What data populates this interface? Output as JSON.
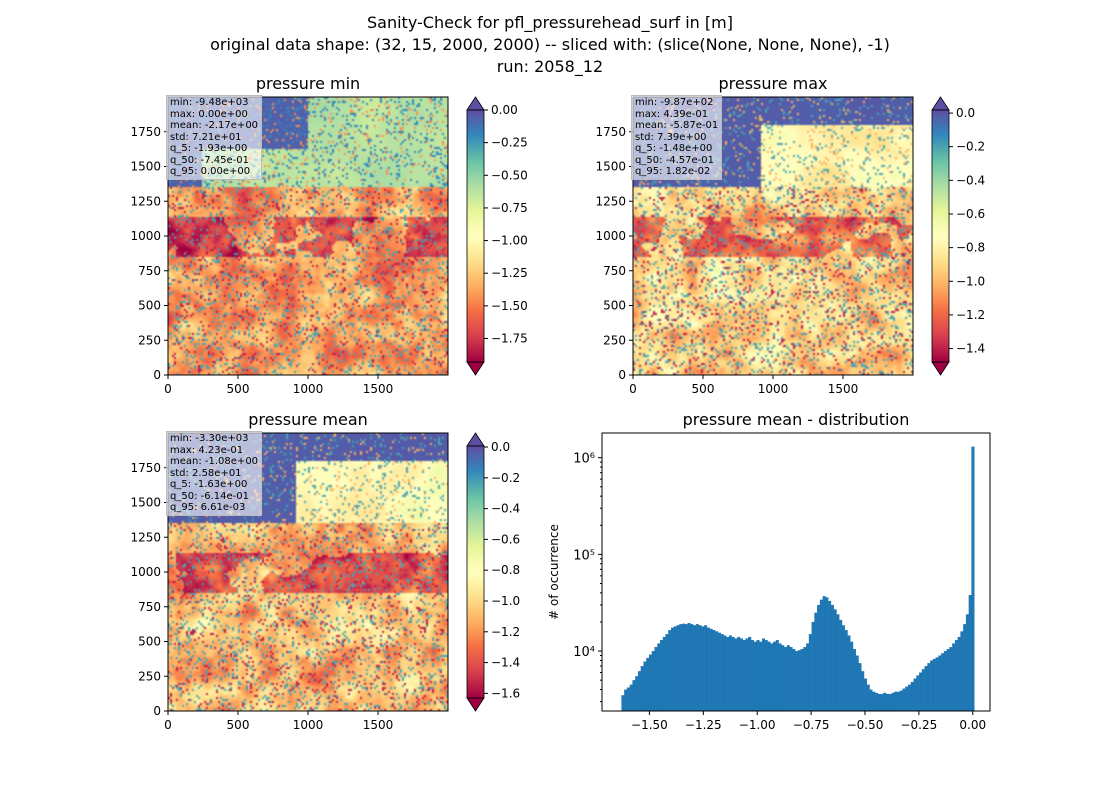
{
  "suptitle": {
    "line1": "Sanity-Check for pfl_pressurehead_surf in [m]",
    "line2": "original data shape: (32, 15, 2000, 2000) -- sliced with: (slice(None, None, None), -1)",
    "line3": "run: 2058_12"
  },
  "colormap": {
    "name": "Spectral",
    "stops": [
      "#9e0142",
      "#d53e4f",
      "#f46d43",
      "#fdae61",
      "#fee08b",
      "#ffffbf",
      "#e6f598",
      "#abdda4",
      "#66c2a5",
      "#3288bd",
      "#5e4fa2"
    ]
  },
  "chart_data": [
    {
      "type": "heatmap",
      "title": "pressure min",
      "xlim": [
        0,
        2000
      ],
      "ylim": [
        0,
        2000
      ],
      "xticks": [
        0,
        500,
        1000,
        1500
      ],
      "yticks": [
        0,
        250,
        500,
        750,
        1000,
        1250,
        1500,
        1750
      ],
      "colorbar": {
        "min": -1.93,
        "max": 0.0,
        "ticks": [
          "0.00",
          "−0.25",
          "−0.50",
          "−0.75",
          "−1.00",
          "−1.25",
          "−1.50",
          "−1.75"
        ],
        "tick_values": [
          0,
          -0.25,
          -0.5,
          -0.75,
          -1.0,
          -1.25,
          -1.5,
          -1.75
        ],
        "extend": "both"
      },
      "stats": [
        "min: -9.48e+03",
        "max: 0.00e+00",
        "mean: -2.17e+00",
        "std: 7.21e+01",
        "q_5: -1.93e+00",
        "q_50: -7.45e-01",
        "q_95: 0.00e+00"
      ]
    },
    {
      "type": "heatmap",
      "title": "pressure max",
      "xlim": [
        0,
        2000
      ],
      "ylim": [
        0,
        2000
      ],
      "xticks": [
        0,
        500,
        1000,
        1500
      ],
      "yticks": [
        0,
        250,
        500,
        750,
        1000,
        1250,
        1500,
        1750
      ],
      "colorbar": {
        "min": -1.48,
        "max": 0.0182,
        "ticks": [
          "0.0",
          "−0.2",
          "−0.4",
          "−0.6",
          "−0.8",
          "−1.0",
          "−1.2",
          "−1.4"
        ],
        "tick_values": [
          0,
          -0.2,
          -0.4,
          -0.6,
          -0.8,
          -1.0,
          -1.2,
          -1.4
        ],
        "extend": "both"
      },
      "stats": [
        "min: -9.87e+02",
        "max: 4.39e-01",
        "mean: -5.87e-01",
        "std: 7.39e+00",
        "q_5: -1.48e+00",
        "q_50: -4.57e-01",
        "q_95: 1.82e-02"
      ]
    },
    {
      "type": "heatmap",
      "title": "pressure mean",
      "xlim": [
        0,
        2000
      ],
      "ylim": [
        0,
        2000
      ],
      "xticks": [
        0,
        500,
        1000,
        1500
      ],
      "yticks": [
        0,
        250,
        500,
        750,
        1000,
        1250,
        1500,
        1750
      ],
      "colorbar": {
        "min": -1.63,
        "max": 0.00661,
        "ticks": [
          "0.0",
          "−0.2",
          "−0.4",
          "−0.6",
          "−0.8",
          "−1.0",
          "−1.2",
          "−1.4",
          "−1.6"
        ],
        "tick_values": [
          0,
          -0.2,
          -0.4,
          -0.6,
          -0.8,
          -1.0,
          -1.2,
          -1.4,
          -1.6
        ],
        "extend": "both"
      },
      "stats": [
        "min: -3.30e+03",
        "max: 4.23e-01",
        "mean: -1.08e+00",
        "std: 2.58e+01",
        "q_5: -1.63e+00",
        "q_50: -6.14e-01",
        "q_95: 6.61e-03"
      ]
    },
    {
      "type": "bar",
      "title": "pressure mean - distribution",
      "ylabel": "# of occurrence",
      "yscale": "log",
      "xlim": [
        -1.72,
        0.08
      ],
      "ylim": [
        2400,
        1800000
      ],
      "xticks": [
        -1.5,
        -1.25,
        -1.0,
        -0.75,
        -0.5,
        -0.25,
        0.0
      ],
      "xtick_labels": [
        "−1.50",
        "−1.25",
        "−1.00",
        "−0.75",
        "−0.50",
        "−0.25",
        "0.00"
      ],
      "yticks": [
        10000,
        100000,
        1000000
      ],
      "ytick_labels": [
        "10⁴",
        "10⁵",
        "10⁶"
      ],
      "color": "#1f77b4",
      "bin_range": [
        -1.63,
        0.0066
      ],
      "counts": [
        3500,
        4000,
        4200,
        4500,
        5000,
        5500,
        6200,
        7000,
        7800,
        8500,
        9200,
        10000,
        11000,
        12000,
        13000,
        14000,
        15000,
        16500,
        17500,
        18000,
        18500,
        19000,
        19200,
        19000,
        19500,
        19000,
        18500,
        19000,
        18500,
        18000,
        18500,
        17500,
        17000,
        16500,
        16000,
        15500,
        15000,
        14500,
        14000,
        14500,
        14000,
        13500,
        14000,
        13500,
        13000,
        13500,
        14000,
        13000,
        12500,
        13000,
        12500,
        13500,
        13000,
        12500,
        12000,
        12500,
        13000,
        12000,
        11500,
        11000,
        11500,
        11000,
        10500,
        10000,
        10200,
        10500,
        11000,
        12000,
        15000,
        20000,
        25000,
        30000,
        34000,
        37000,
        36000,
        33000,
        30000,
        27000,
        24000,
        21000,
        18500,
        16500,
        14500,
        12500,
        10500,
        9000,
        7500,
        6200,
        5200,
        4500,
        4000,
        3800,
        3700,
        3600,
        3600,
        3700,
        3600,
        3600,
        3700,
        3800,
        3800,
        3900,
        4100,
        4300,
        4500,
        4800,
        5200,
        5600,
        6000,
        6500,
        7000,
        7500,
        8000,
        8300,
        8600,
        9000,
        9500,
        10000,
        10500,
        11000,
        12000,
        13000,
        14000,
        16000,
        19000,
        24000,
        38000,
        1300000
      ]
    }
  ]
}
